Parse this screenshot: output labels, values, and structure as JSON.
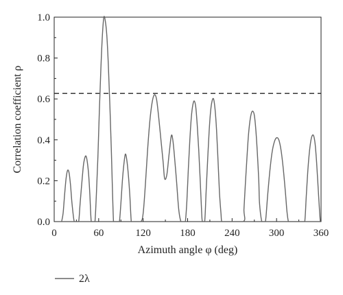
{
  "chart_data": {
    "type": "line",
    "xlabel": "Azimuth angle φ (deg)",
    "ylabel": "Correlation coefficient ρ",
    "xlim": [
      0,
      360
    ],
    "ylim": [
      0.0,
      1.0
    ],
    "xticks": [
      0,
      60,
      120,
      180,
      240,
      300,
      360
    ],
    "yticks": [
      0.0,
      0.2,
      0.4,
      0.6,
      0.8,
      1.0
    ],
    "xtick_labels": [
      "0",
      "60",
      "120",
      "180",
      "240",
      "300",
      "360"
    ],
    "ytick_labels": [
      "0.0",
      "0.2",
      "0.4",
      "0.6",
      "0.8",
      "1.0"
    ],
    "threshold": 0.627,
    "grid": false,
    "legend_position": "bottom-left",
    "series": [
      {
        "name": "2λ",
        "color": "#666666",
        "x": [
          10,
          12,
          14,
          16,
          18,
          20,
          22,
          24,
          27,
          30,
          33,
          35,
          38,
          40,
          43,
          46,
          48,
          50,
          53,
          55,
          57,
          59,
          61,
          63,
          65,
          67,
          69,
          71,
          73,
          75,
          77,
          80,
          82,
          84,
          86,
          88,
          90,
          92,
          94,
          96,
          98,
          100,
          102,
          104,
          106,
          108,
          110,
          117,
          120,
          123,
          126,
          129,
          132,
          135,
          138,
          141,
          144,
          147,
          149,
          152,
          155,
          158,
          160,
          162,
          165,
          168,
          171,
          174,
          176,
          177,
          179,
          181,
          183,
          185,
          187,
          189,
          191,
          193,
          195,
          197,
          199,
          200,
          203,
          205,
          207,
          209,
          211,
          213,
          215,
          217,
          219,
          221,
          223,
          225,
          226,
          229,
          255,
          256,
          258,
          260,
          262,
          264,
          266,
          268,
          270,
          272,
          274,
          276,
          277,
          280,
          282,
          285,
          288,
          291,
          294,
          297,
          300,
          303,
          306,
          309,
          312,
          314,
          316,
          318,
          320,
          335,
          338,
          340,
          342,
          344,
          346,
          348,
          350,
          352,
          354,
          356,
          358,
          359
        ],
        "y": [
          0.0,
          0.04,
          0.13,
          0.21,
          0.25,
          0.24,
          0.18,
          0.09,
          0.0,
          0.0,
          0.0,
          0.09,
          0.22,
          0.29,
          0.32,
          0.25,
          0.14,
          0.0,
          0.0,
          0.0,
          0.14,
          0.32,
          0.55,
          0.75,
          0.91,
          1.0,
          0.98,
          0.91,
          0.77,
          0.58,
          0.36,
          0.0,
          0.0,
          0.0,
          0.0,
          0.0,
          0.09,
          0.2,
          0.28,
          0.33,
          0.3,
          0.23,
          0.13,
          0.0,
          0.0,
          0.0,
          0.0,
          0.0,
          0.04,
          0.18,
          0.35,
          0.49,
          0.58,
          0.62,
          0.6,
          0.51,
          0.4,
          0.29,
          0.21,
          0.23,
          0.33,
          0.42,
          0.4,
          0.33,
          0.2,
          0.06,
          0.0,
          0.0,
          0.0,
          0.0,
          0.1,
          0.26,
          0.4,
          0.51,
          0.57,
          0.59,
          0.56,
          0.47,
          0.35,
          0.2,
          0.04,
          0.0,
          0.0,
          0.15,
          0.3,
          0.44,
          0.54,
          0.59,
          0.6,
          0.55,
          0.45,
          0.3,
          0.14,
          0.04,
          0.0,
          0.0,
          0.0,
          0.06,
          0.19,
          0.31,
          0.42,
          0.49,
          0.53,
          0.54,
          0.52,
          0.45,
          0.34,
          0.2,
          0.09,
          0.0,
          0.0,
          0.0,
          0.13,
          0.25,
          0.34,
          0.39,
          0.41,
          0.4,
          0.35,
          0.26,
          0.14,
          0.05,
          0.0,
          0.0,
          0.0,
          0.0,
          0.0,
          0.12,
          0.24,
          0.33,
          0.39,
          0.42,
          0.42,
          0.38,
          0.29,
          0.17,
          0.05,
          0.0
        ]
      }
    ]
  }
}
